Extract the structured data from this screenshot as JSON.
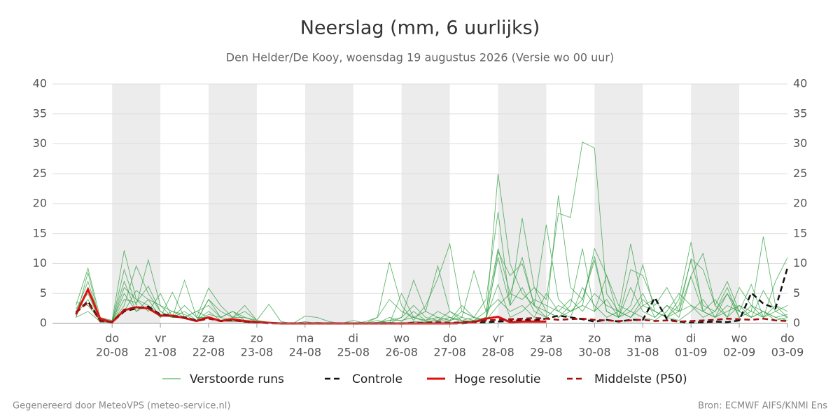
{
  "chart_data": {
    "type": "line",
    "title": "Neerslag (mm, 6 uurlijks)",
    "subtitle": "Den Helder/De Kooy, woensdag 19 augustus 2026 (Versie wo 00 uur)",
    "footer_left": "Gegenereerd door MeteoVPS (meteo-service.nl)",
    "footer_right": "Bron: ECMWF AIFS/KNMI Ens",
    "weekdays": [
      null,
      null,
      null,
      "do",
      null,
      null,
      null,
      "vr",
      null,
      null,
      null,
      "za",
      null,
      null,
      null,
      "zo",
      null,
      null,
      null,
      "ma",
      null,
      null,
      null,
      "di",
      null,
      null,
      null,
      "wo",
      null,
      null,
      null,
      "do",
      null,
      null,
      null,
      "vr",
      null,
      null,
      null,
      "za",
      null,
      null,
      null,
      "zo",
      null,
      null,
      null,
      "ma",
      null,
      null,
      null,
      "di",
      null,
      null,
      null,
      "wo",
      null,
      null,
      null,
      "do"
    ],
    "categories": [
      null,
      null,
      null,
      "20-08",
      null,
      null,
      null,
      "21-08",
      null,
      null,
      null,
      "22-08",
      null,
      null,
      null,
      "23-08",
      null,
      null,
      null,
      "24-08",
      null,
      null,
      null,
      "25-08",
      null,
      null,
      null,
      "26-08",
      null,
      null,
      null,
      "27-08",
      null,
      null,
      null,
      "28-08",
      null,
      null,
      null,
      "29-08",
      null,
      null,
      null,
      "30-08",
      null,
      null,
      null,
      "31-08",
      null,
      null,
      null,
      "01-09",
      null,
      null,
      null,
      "02-09",
      null,
      null,
      null,
      "03-09"
    ],
    "ylim": [
      0,
      40
    ],
    "yticks": [
      0,
      5,
      10,
      15,
      20,
      25,
      30,
      35,
      40
    ],
    "grid": true,
    "ensemble": {
      "name": "Verstoorde runs",
      "color": "#2e9e3e",
      "members": [
        [
          3,
          9.2,
          1,
          0.5,
          12.2,
          4,
          2,
          5,
          1,
          2,
          0.5,
          4,
          1,
          2,
          0.5,
          0.3,
          0,
          0,
          0,
          0,
          0,
          0,
          0,
          0,
          0,
          0.2,
          0.5,
          1,
          7.2,
          2,
          1,
          0.5,
          3,
          1,
          0.5,
          25,
          10,
          5,
          3,
          16.5,
          4,
          2,
          3,
          12.5,
          8,
          3,
          2,
          5,
          1,
          3,
          2,
          10.8,
          9,
          3,
          1,
          3,
          2,
          14.5,
          3,
          2
        ],
        [
          2,
          7,
          0.5,
          0.3,
          9,
          3,
          10.6,
          3,
          2,
          1,
          2,
          1,
          0.5,
          1,
          3,
          0.5,
          0.2,
          0,
          0,
          1.2,
          1,
          0.3,
          0,
          0,
          0,
          1,
          10.2,
          3,
          0.5,
          3,
          7.5,
          13.3,
          2,
          1,
          4,
          18.6,
          3,
          17.6,
          6,
          4,
          18.4,
          17.7,
          30.3,
          29.3,
          5,
          2,
          13.3,
          3,
          2,
          1,
          4,
          13.6,
          2,
          1,
          5,
          2,
          1,
          2,
          0.5,
          1
        ],
        [
          1,
          8.5,
          0.3,
          0.2,
          3,
          9.6,
          5,
          2,
          1,
          7.2,
          1,
          5.9,
          3,
          1,
          2,
          0.5,
          3.2,
          0.3,
          0,
          0,
          0,
          0,
          0,
          0.5,
          0,
          0,
          0,
          5,
          1,
          2,
          9.6,
          2,
          1,
          8.8,
          2,
          12.5,
          5,
          11,
          3,
          1,
          21.4,
          6,
          4,
          11.2,
          2,
          1,
          9,
          8,
          3,
          6,
          2,
          8,
          11.7,
          3,
          7,
          2,
          6.5,
          1,
          7,
          11
        ],
        [
          1.5,
          4,
          0.2,
          0.5,
          7,
          2,
          3,
          1,
          2,
          1.5,
          0.3,
          4,
          2,
          1,
          1,
          0.5,
          0,
          0,
          0,
          0,
          0,
          0,
          0,
          0,
          0.3,
          1,
          4,
          2,
          1,
          0.5,
          2,
          1,
          0.5,
          1,
          0.3,
          12,
          8,
          10,
          3,
          2,
          1,
          3,
          12.5,
          2,
          4,
          1,
          3,
          9.8,
          2,
          1,
          3,
          10.5,
          3,
          2,
          5,
          1,
          3,
          1,
          2,
          1
        ],
        [
          1,
          6,
          0.5,
          0.3,
          5,
          2,
          4,
          1,
          5.2,
          1,
          2,
          3,
          1,
          0.5,
          0.3,
          0,
          0,
          0,
          0,
          0.3,
          0,
          0,
          0,
          0,
          0,
          0,
          1,
          0.3,
          2,
          0.5,
          1,
          0.5,
          1,
          0.5,
          2,
          4,
          2,
          3,
          1,
          5,
          2,
          1,
          6,
          3,
          1,
          2,
          1,
          3,
          4,
          1,
          2,
          3,
          1,
          2,
          6,
          1,
          2,
          1,
          3,
          1
        ],
        [
          2.5,
          5,
          0.2,
          0.2,
          6,
          4,
          3,
          1.5,
          1,
          1,
          0.5,
          2,
          0.5,
          0.3,
          0.5,
          0.2,
          0,
          0,
          0,
          0,
          0,
          0,
          0,
          0,
          0,
          0.5,
          0,
          1,
          3,
          1,
          0.5,
          2,
          0.5,
          0.3,
          1,
          11,
          3,
          6,
          2,
          1,
          3,
          2,
          4,
          10.5,
          2,
          1,
          6,
          2,
          1,
          3,
          1,
          7.8,
          2,
          1,
          3,
          2,
          1,
          5.5,
          2,
          3
        ],
        [
          3.5,
          3,
          0.5,
          0.2,
          4,
          3.5,
          6.2,
          2,
          1,
          1,
          0.3,
          1.5,
          1,
          2,
          1,
          0.3,
          0,
          0,
          0,
          0,
          0.2,
          0,
          0,
          0,
          0,
          0,
          0.5,
          0.5,
          1,
          0.3,
          0.5,
          0.3,
          2,
          1,
          0.5,
          3,
          5,
          4,
          6,
          2,
          1,
          2,
          3,
          2,
          8,
          1,
          2,
          1,
          0.5,
          2,
          5,
          3,
          2,
          4,
          1,
          6,
          3,
          2,
          1,
          0.5
        ],
        [
          1,
          2,
          0.3,
          0.3,
          2,
          5.5,
          4,
          3,
          1,
          3,
          1,
          1,
          0.3,
          0.5,
          0.2,
          0,
          0,
          0,
          0,
          0,
          0,
          0,
          0,
          0,
          0,
          0,
          0.2,
          0,
          0.3,
          0.2,
          0.5,
          1,
          0.3,
          0.5,
          1,
          6.5,
          1,
          2,
          4,
          3,
          2,
          4,
          2,
          5,
          3,
          2,
          1,
          4,
          2,
          1,
          0.5,
          2,
          4,
          1,
          2,
          3,
          1,
          2,
          1,
          1.5
        ]
      ]
    },
    "series": [
      {
        "name": "Controle",
        "color": "#111111",
        "dashed": true,
        "values": [
          1.8,
          3.7,
          0.5,
          0.2,
          2.0,
          2.5,
          2.8,
          1.5,
          1.3,
          1.0,
          0.5,
          1.0,
          0.4,
          0.6,
          0.3,
          0.1,
          0.1,
          0,
          0,
          0,
          0,
          0,
          0,
          0,
          0,
          0,
          0,
          0,
          0,
          0,
          0,
          0,
          0,
          0.1,
          0.2,
          0.3,
          0.4,
          0.6,
          0.5,
          0.8,
          1.3,
          1.0,
          0.7,
          0.3,
          0.6,
          0.3,
          0.6,
          0.6,
          4.3,
          0.7,
          0.3,
          0.1,
          0.2,
          0.3,
          0.2,
          0.5,
          5.1,
          3.3,
          2.5,
          9.3
        ]
      },
      {
        "name": "Hoge resolutie",
        "color": "#e01010",
        "dashed": false,
        "values": [
          1.5,
          5.7,
          0.8,
          0.2,
          2.2,
          2.7,
          2.5,
          1.3,
          1.3,
          0.9,
          0.4,
          1.0,
          0.4,
          0.7,
          0.4,
          0.2,
          0.1,
          0,
          0,
          0,
          0,
          0,
          0,
          0,
          0,
          0,
          0,
          0,
          0,
          0,
          0,
          0,
          0.1,
          0.2,
          0.8,
          1.1,
          0.2,
          0.3,
          0.3,
          0.3,
          null,
          null,
          null,
          null,
          null,
          null,
          null,
          null,
          null,
          null,
          null,
          null,
          null,
          null,
          null,
          null,
          null,
          null,
          null,
          null
        ]
      },
      {
        "name": "Middelste (P50)",
        "color": "#a01010",
        "dashed": true,
        "values": [
          1.8,
          3.5,
          0.4,
          0.2,
          2.3,
          2.7,
          2.6,
          1.4,
          1.2,
          0.9,
          0.4,
          0.8,
          0.4,
          0.5,
          0.3,
          0.1,
          0,
          0,
          0,
          0,
          0,
          0,
          0,
          0,
          0,
          0,
          0,
          0,
          0.1,
          0.1,
          0.2,
          0.1,
          0.2,
          0.3,
          0.5,
          0.6,
          0.7,
          0.8,
          0.9,
          0.8,
          0.6,
          0.7,
          0.8,
          0.6,
          0.5,
          0.4,
          0.5,
          0.6,
          0.4,
          0.5,
          0.3,
          0.4,
          0.5,
          0.6,
          0.8,
          0.7,
          0.6,
          0.8,
          0.5,
          0.4
        ]
      }
    ]
  }
}
